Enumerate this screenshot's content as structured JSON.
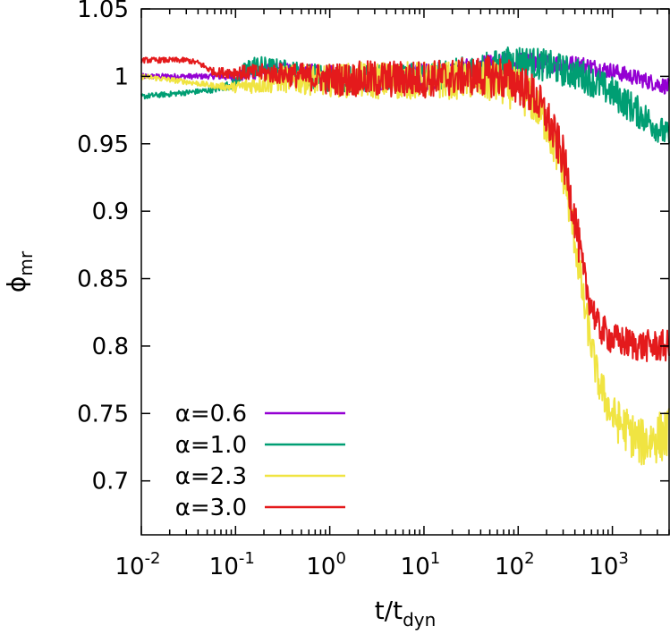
{
  "chart_data": {
    "type": "line",
    "xlabel": {
      "main": "t/t",
      "sub": "dyn"
    },
    "ylabel": {
      "main": "ϕ",
      "sub": "mr"
    },
    "xscale": "log",
    "xlim": [
      0.01,
      4000
    ],
    "ylim": [
      0.66,
      1.05
    ],
    "grid": false,
    "legend_position": "bottom-left",
    "x_ticks": [
      {
        "value": 0.01,
        "base": "10",
        "exp": "-2"
      },
      {
        "value": 0.1,
        "base": "10",
        "exp": "-1"
      },
      {
        "value": 1,
        "base": "10",
        "exp": "0"
      },
      {
        "value": 10,
        "base": "10",
        "exp": "1"
      },
      {
        "value": 100,
        "base": "10",
        "exp": "2"
      },
      {
        "value": 1000,
        "base": "10",
        "exp": "3"
      }
    ],
    "y_ticks": [
      {
        "value": 0.7,
        "label": "0.7"
      },
      {
        "value": 0.75,
        "label": "0.75"
      },
      {
        "value": 0.8,
        "label": "0.8"
      },
      {
        "value": 0.85,
        "label": "0.85"
      },
      {
        "value": 0.9,
        "label": "0.9"
      },
      {
        "value": 0.95,
        "label": "0.95"
      },
      {
        "value": 1.0,
        "label": "1"
      },
      {
        "value": 1.05,
        "label": "1.05"
      }
    ],
    "series": [
      {
        "name": "α=0.6",
        "color": "#9400d3",
        "x": [
          0.01,
          0.03,
          0.06,
          0.1,
          0.3,
          1,
          3,
          10,
          30,
          60,
          100,
          200,
          500,
          1000,
          2000,
          4000
        ],
        "y": [
          1.0,
          1.0,
          1.0,
          1.0,
          1.005,
          1.0,
          0.998,
          1.0,
          1.003,
          1.007,
          1.01,
          1.01,
          1.008,
          1.004,
          0.998,
          0.992
        ],
        "noise": [
          0.002,
          0.002,
          0.002,
          0.004,
          0.006,
          0.008,
          0.01,
          0.01,
          0.01,
          0.01,
          0.008,
          0.007,
          0.007,
          0.006,
          0.006,
          0.006
        ]
      },
      {
        "name": "α=1.0",
        "color": "#009e73",
        "x": [
          0.01,
          0.03,
          0.06,
          0.1,
          0.12,
          0.15,
          0.3,
          1,
          3,
          10,
          30,
          60,
          100,
          200,
          500,
          1000,
          2000,
          4000
        ],
        "y": [
          0.985,
          0.988,
          0.99,
          0.995,
          1.003,
          1.008,
          1.005,
          0.998,
          0.998,
          1.0,
          1.003,
          1.008,
          1.012,
          1.008,
          1.0,
          0.988,
          0.972,
          0.955
        ],
        "noise": [
          0.002,
          0.002,
          0.002,
          0.004,
          0.006,
          0.008,
          0.008,
          0.01,
          0.01,
          0.01,
          0.012,
          0.012,
          0.012,
          0.012,
          0.012,
          0.012,
          0.012,
          0.01
        ]
      },
      {
        "name": "α=2.3",
        "color": "#f0e442",
        "x": [
          0.01,
          0.03,
          0.06,
          0.1,
          0.2,
          0.3,
          1,
          3,
          10,
          30,
          60,
          100,
          150,
          200,
          300,
          400,
          500,
          700,
          1000,
          2000,
          4000
        ],
        "y": [
          1.0,
          0.996,
          0.993,
          0.992,
          0.995,
          0.998,
          0.997,
          0.997,
          0.997,
          0.997,
          0.995,
          0.99,
          0.98,
          0.965,
          0.93,
          0.88,
          0.83,
          0.775,
          0.748,
          0.728,
          0.735
        ],
        "noise": [
          0.002,
          0.002,
          0.002,
          0.004,
          0.008,
          0.01,
          0.012,
          0.014,
          0.014,
          0.014,
          0.016,
          0.016,
          0.016,
          0.016,
          0.016,
          0.016,
          0.014,
          0.014,
          0.016,
          0.018,
          0.02
        ]
      },
      {
        "name": "α=3.0",
        "color": "#e41a1c",
        "x": [
          0.01,
          0.03,
          0.04,
          0.06,
          0.1,
          0.3,
          1,
          3,
          10,
          30,
          60,
          100,
          150,
          200,
          300,
          400,
          500,
          700,
          1000,
          2000,
          4000
        ],
        "y": [
          1.012,
          1.012,
          1.01,
          1.003,
          1.003,
          1.002,
          0.998,
          0.998,
          0.998,
          1.0,
          1.0,
          0.995,
          0.985,
          0.97,
          0.94,
          0.895,
          0.85,
          0.815,
          0.805,
          0.8,
          0.8
        ],
        "noise": [
          0.002,
          0.002,
          0.002,
          0.003,
          0.005,
          0.008,
          0.012,
          0.014,
          0.014,
          0.014,
          0.016,
          0.016,
          0.016,
          0.016,
          0.016,
          0.016,
          0.014,
          0.012,
          0.012,
          0.012,
          0.012
        ]
      }
    ]
  }
}
